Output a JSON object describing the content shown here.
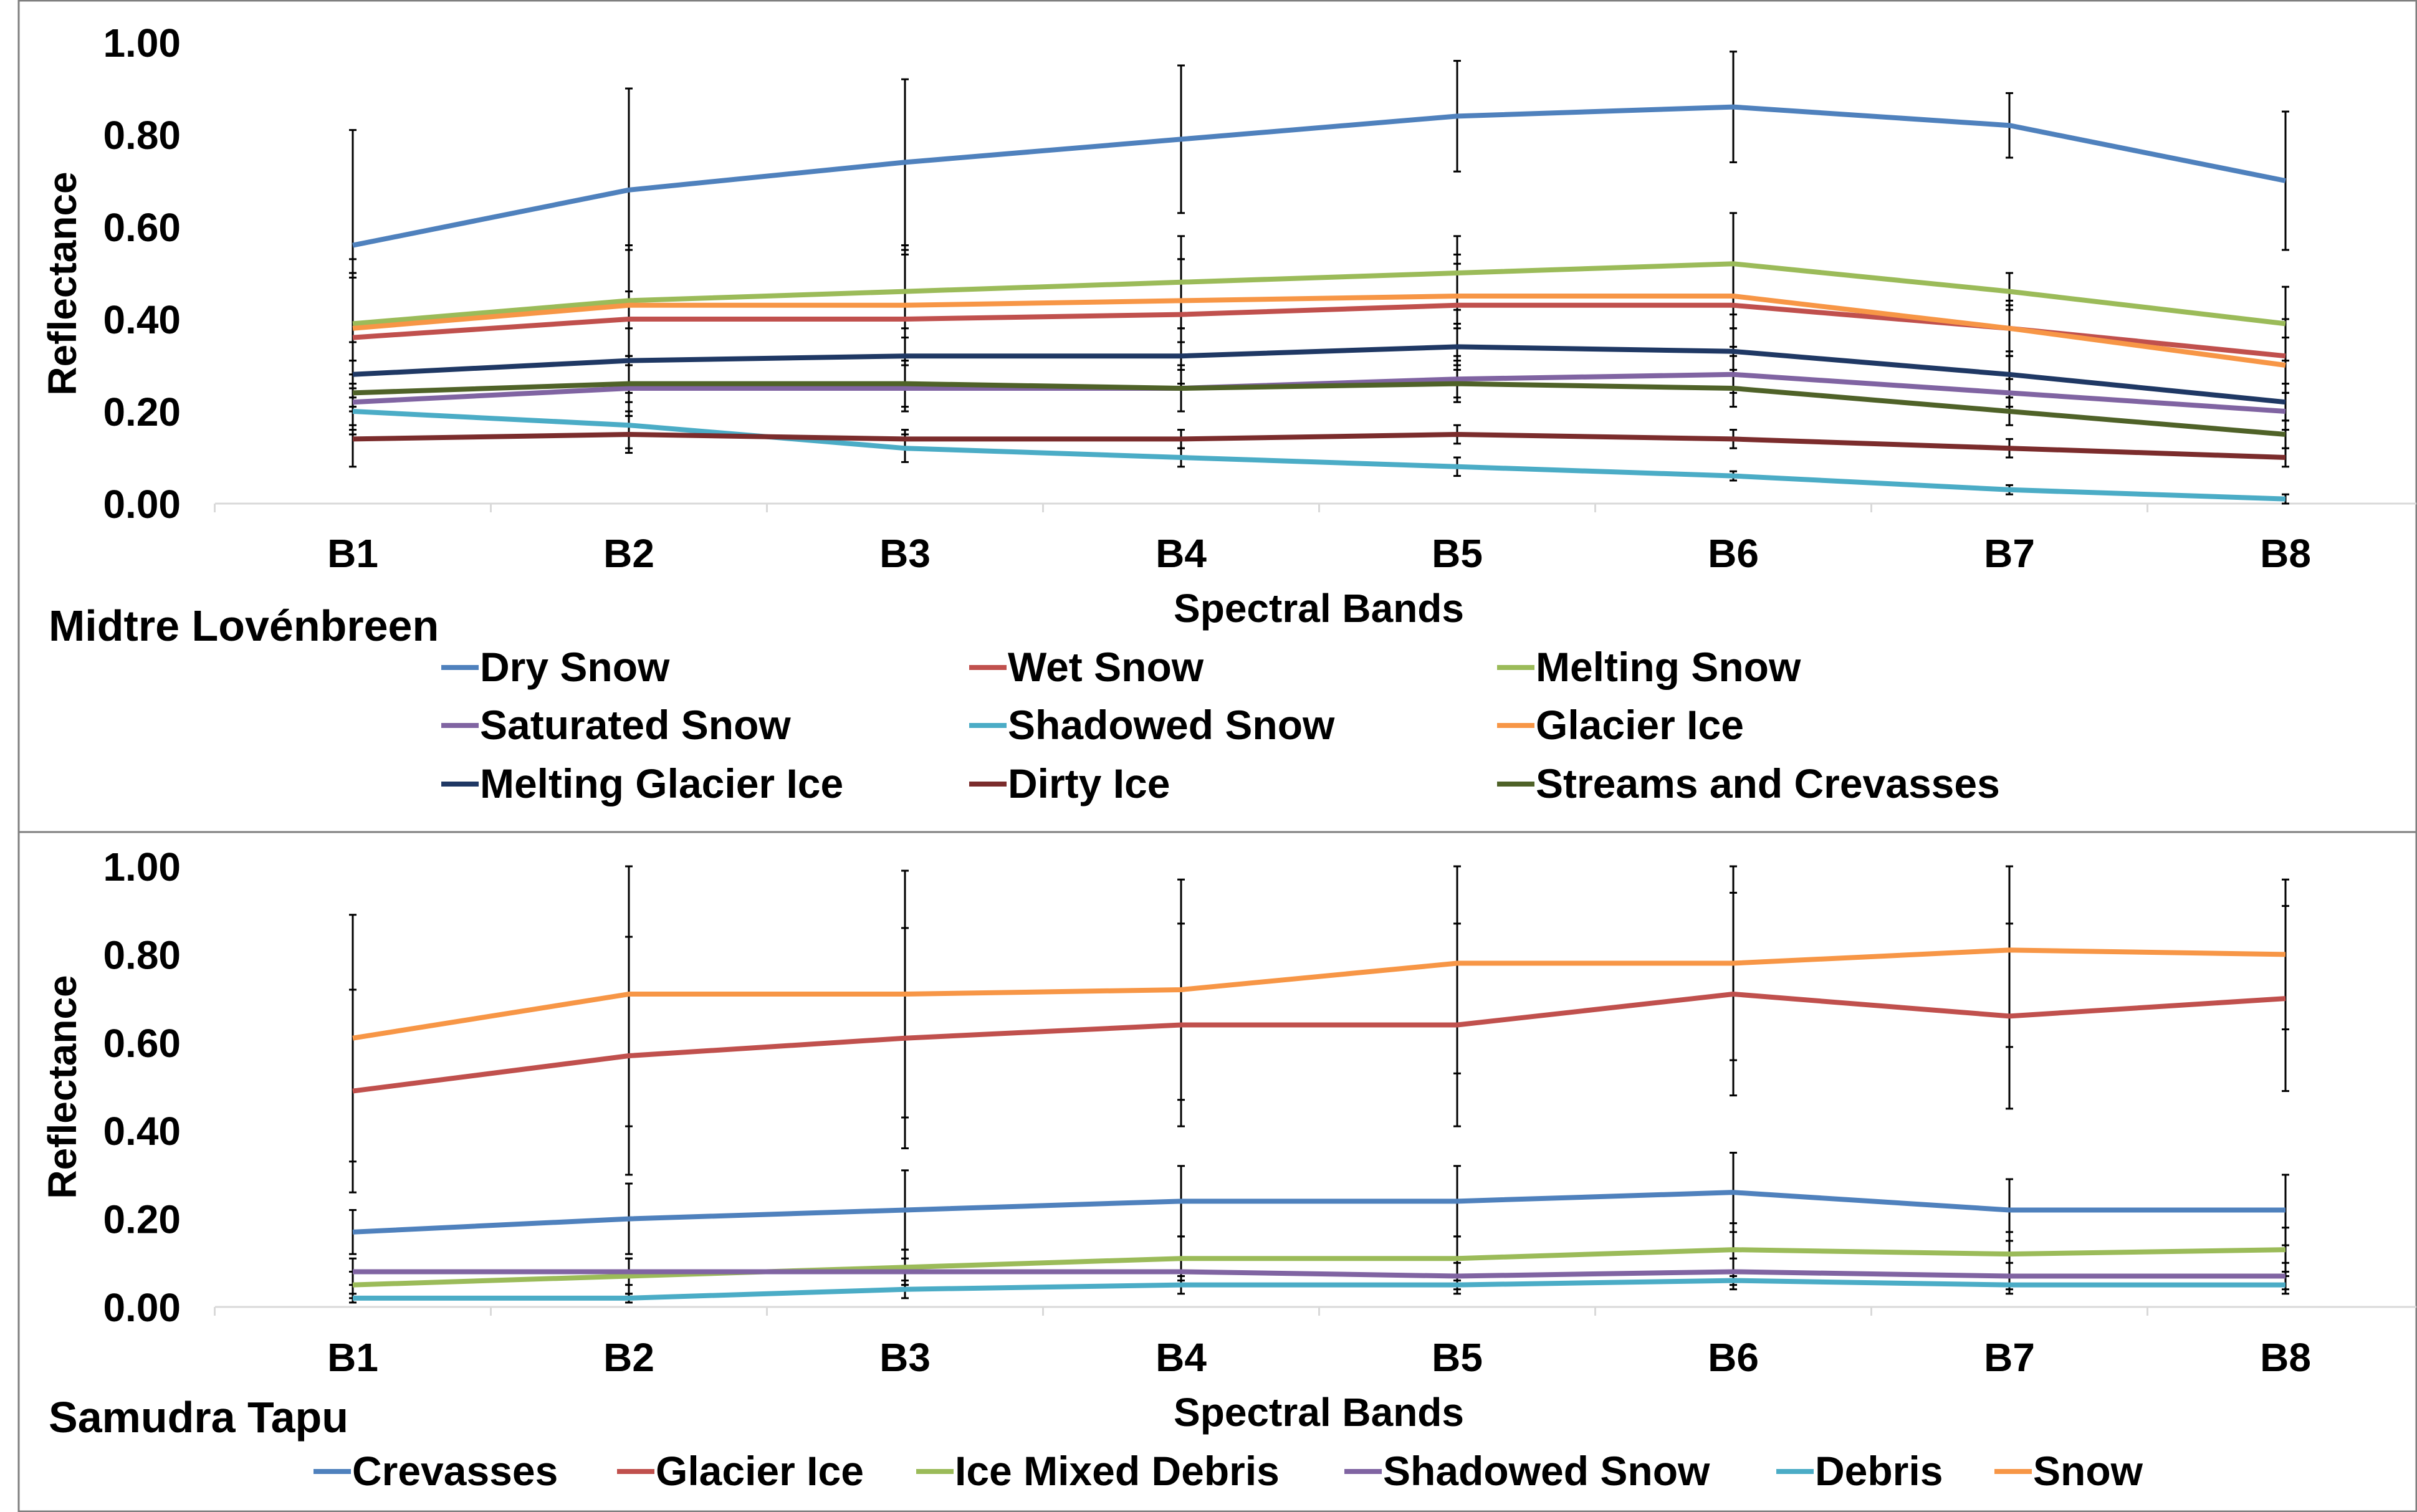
{
  "chart_data": [
    {
      "type": "line",
      "panel_label": "Midtre Lovénbreen",
      "xlabel": "Spectral Bands",
      "ylabel": "Reflectance",
      "categories": [
        "B1",
        "B2",
        "B3",
        "B4",
        "B5",
        "B6",
        "B7",
        "B8"
      ],
      "yticks": [
        "0.00",
        "0.20",
        "0.40",
        "0.60",
        "0.80",
        "1.00"
      ],
      "ylim": [
        0,
        1
      ],
      "legend_position": "bottom",
      "series": [
        {
          "name": "Dry Snow",
          "color": "#4f81bd",
          "values": [
            0.56,
            0.68,
            0.74,
            0.79,
            0.84,
            0.86,
            0.82,
            0.7
          ],
          "error": [
            0.25,
            0.22,
            0.18,
            0.16,
            0.12,
            0.12,
            0.07,
            0.15
          ]
        },
        {
          "name": "Wet Snow",
          "color": "#c0504d",
          "values": [
            0.36,
            0.4,
            0.4,
            0.41,
            0.43,
            0.43,
            0.38,
            0.32
          ],
          "error": [
            0.13,
            0.15,
            0.14,
            0.12,
            0.11,
            0.09,
            0.06,
            0.08
          ]
        },
        {
          "name": "Melting Snow",
          "color": "#9bbb59",
          "values": [
            0.39,
            0.44,
            0.46,
            0.48,
            0.5,
            0.52,
            0.46,
            0.39
          ],
          "error": [
            0.14,
            0.12,
            0.1,
            0.1,
            0.08,
            0.11,
            0.04,
            0.08
          ]
        },
        {
          "name": "Saturated Snow",
          "color": "#8064a2",
          "values": [
            0.22,
            0.25,
            0.25,
            0.25,
            0.27,
            0.28,
            0.24,
            0.2
          ],
          "error": [
            0.06,
            0.06,
            0.05,
            0.05,
            0.04,
            0.04,
            0.03,
            0.04
          ]
        },
        {
          "name": "Shadowed Snow",
          "color": "#4bacc6",
          "values": [
            0.2,
            0.17,
            0.12,
            0.1,
            0.08,
            0.06,
            0.03,
            0.01
          ],
          "error": [
            0.05,
            0.05,
            0.03,
            0.02,
            0.02,
            0.01,
            0.01,
            0.01
          ]
        },
        {
          "name": "Glacier Ice",
          "color": "#f79646",
          "values": [
            0.38,
            0.43,
            0.43,
            0.44,
            0.45,
            0.45,
            0.38,
            0.3
          ],
          "error": [
            0.12,
            0.13,
            0.12,
            0.09,
            0.07,
            0.07,
            0.05,
            0.06
          ]
        },
        {
          "name": "Melting Glacier Ice",
          "color": "#1f3864",
          "values": [
            0.28,
            0.31,
            0.32,
            0.32,
            0.34,
            0.33,
            0.28,
            0.22
          ],
          "error": [
            0.07,
            0.07,
            0.06,
            0.06,
            0.05,
            0.05,
            0.04,
            0.04
          ]
        },
        {
          "name": "Dirty Ice",
          "color": "#7b2c2c",
          "values": [
            0.14,
            0.15,
            0.14,
            0.14,
            0.15,
            0.14,
            0.12,
            0.1
          ],
          "error": [
            0.06,
            0.04,
            0.02,
            0.02,
            0.02,
            0.02,
            0.02,
            0.02
          ]
        },
        {
          "name": "Streams and Crevasses",
          "color": "#4f6228",
          "values": [
            0.24,
            0.26,
            0.26,
            0.25,
            0.26,
            0.25,
            0.2,
            0.15
          ],
          "error": [
            0.07,
            0.06,
            0.05,
            0.05,
            0.04,
            0.04,
            0.03,
            0.03
          ]
        }
      ]
    },
    {
      "type": "line",
      "panel_label": "Samudra Tapu",
      "xlabel": "Spectral Bands",
      "ylabel": "Reflectance",
      "categories": [
        "B1",
        "B2",
        "B3",
        "B4",
        "B5",
        "B6",
        "B7",
        "B8"
      ],
      "yticks": [
        "0.00",
        "0.20",
        "0.40",
        "0.60",
        "0.80",
        "1.00"
      ],
      "ylim": [
        0,
        1
      ],
      "legend_position": "bottom",
      "series": [
        {
          "name": "Crevasses",
          "color": "#4f81bd",
          "values": [
            0.17,
            0.2,
            0.22,
            0.24,
            0.24,
            0.26,
            0.22,
            0.22
          ],
          "error": [
            0.05,
            0.08,
            0.09,
            0.08,
            0.08,
            0.09,
            0.07,
            0.08
          ]
        },
        {
          "name": "Glacier Ice",
          "color": "#c0504d",
          "values": [
            0.49,
            0.57,
            0.61,
            0.64,
            0.64,
            0.71,
            0.66,
            0.7
          ],
          "error": [
            0.23,
            0.27,
            0.25,
            0.23,
            0.23,
            0.23,
            0.21,
            0.21
          ]
        },
        {
          "name": "Ice Mixed Debris",
          "color": "#9bbb59",
          "values": [
            0.05,
            0.07,
            0.09,
            0.11,
            0.11,
            0.13,
            0.12,
            0.13
          ],
          "error": [
            0.03,
            0.04,
            0.04,
            0.05,
            0.05,
            0.06,
            0.05,
            0.05
          ]
        },
        {
          "name": "Shadowed Snow",
          "color": "#8064a2",
          "values": [
            0.08,
            0.08,
            0.08,
            0.08,
            0.07,
            0.08,
            0.07,
            0.07
          ],
          "error": [
            0.03,
            0.03,
            0.03,
            0.03,
            0.03,
            0.03,
            0.03,
            0.03
          ]
        },
        {
          "name": "Debris",
          "color": "#4bacc6",
          "values": [
            0.02,
            0.02,
            0.04,
            0.05,
            0.05,
            0.06,
            0.05,
            0.05
          ],
          "error": [
            0.01,
            0.01,
            0.02,
            0.02,
            0.02,
            0.02,
            0.02,
            0.02
          ]
        },
        {
          "name": "Snow",
          "color": "#f79646",
          "values": [
            0.61,
            0.71,
            0.71,
            0.72,
            0.78,
            0.78,
            0.81,
            0.8
          ],
          "error": [
            0.28,
            0.3,
            0.28,
            0.25,
            0.25,
            0.22,
            0.22,
            0.17
          ]
        }
      ]
    }
  ]
}
